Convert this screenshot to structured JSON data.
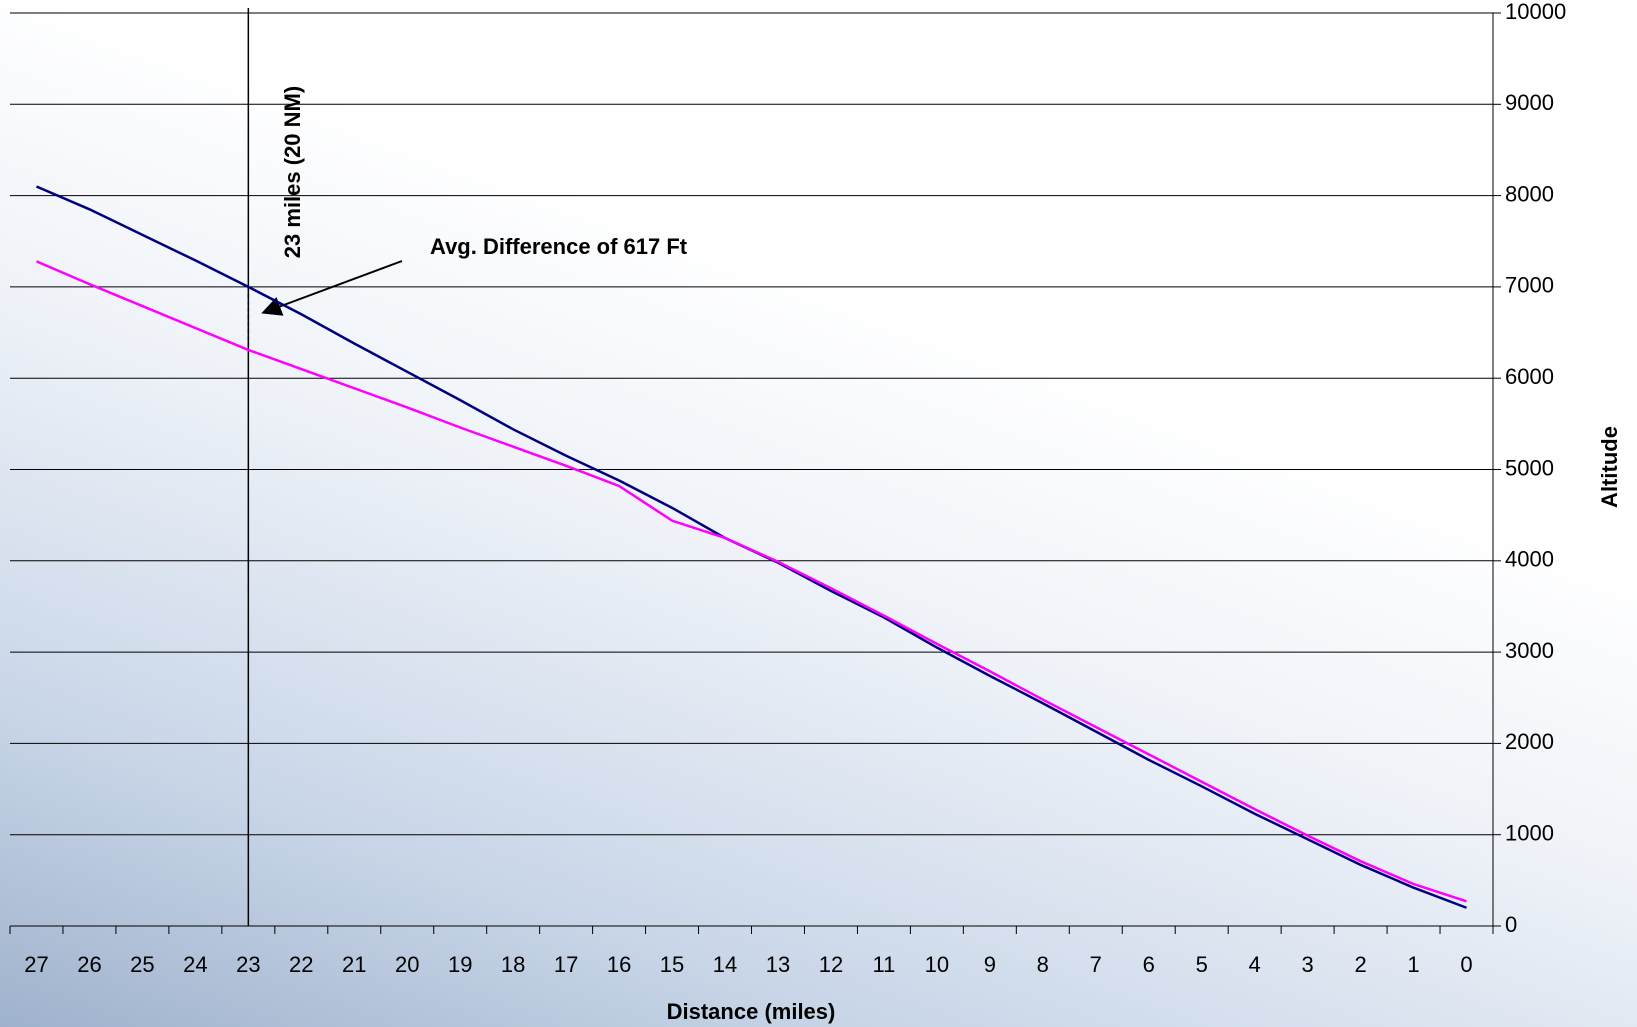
{
  "chart_data": {
    "type": "line",
    "categories": [
      "27",
      "26",
      "25",
      "24",
      "23",
      "22",
      "21",
      "20",
      "19",
      "18",
      "17",
      "16",
      "15",
      "14",
      "13",
      "12",
      "11",
      "10",
      "9",
      "8",
      "7",
      "6",
      "5",
      "4",
      "3",
      "2",
      "1",
      "0"
    ],
    "series": [
      {
        "color": "#000080",
        "values": [
          8100,
          7850,
          7570,
          7290,
          7000,
          6700,
          6380,
          6070,
          5760,
          5440,
          5150,
          4880,
          4580,
          4250,
          3980,
          3670,
          3380,
          3050,
          2740,
          2440,
          2130,
          1820,
          1530,
          1230,
          950,
          670,
          420,
          200
        ]
      },
      {
        "color": "#ff00ff",
        "values": [
          7280,
          7030,
          6790,
          6550,
          6310,
          6100,
          5890,
          5680,
          5460,
          5250,
          5040,
          4820,
          4440,
          4250,
          3990,
          3700,
          3400,
          3090,
          2790,
          2480,
          2180,
          1880,
          1580,
          1280,
          990,
          710,
          460,
          270
        ]
      }
    ],
    "ylim": [
      0,
      10000
    ],
    "yticks": [
      0,
      1000,
      2000,
      3000,
      4000,
      5000,
      6000,
      7000,
      8000,
      9000,
      10000
    ],
    "grid": true,
    "x_label": "Distance (miles)",
    "y_label": "Altitude",
    "annotations": [
      "23 miles  (20 NM)",
      "Avg. Difference of 617 Ft"
    ]
  }
}
